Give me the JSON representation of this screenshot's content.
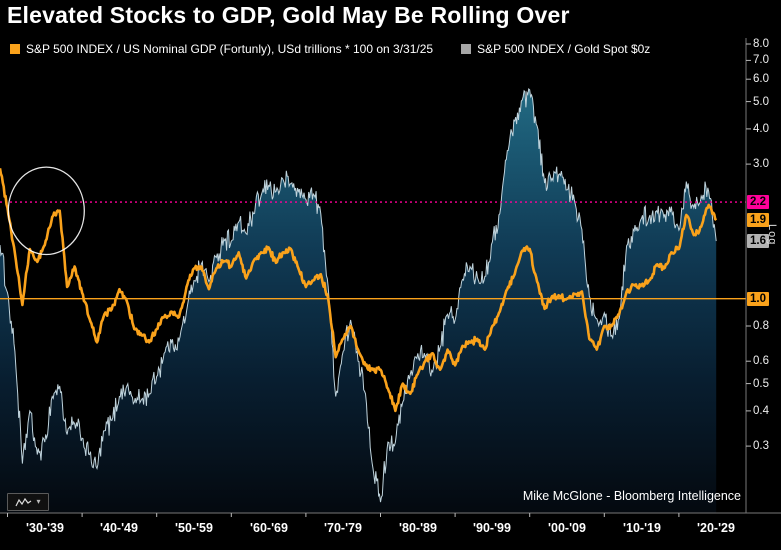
{
  "title": "Elevated Stocks to GDP, Gold May Be Rolling Over",
  "legend": {
    "items": [
      {
        "label": "S&P 500 INDEX / US Nominal GDP (Fortunly), USd trillions * 100 on 3/31/25",
        "swatch_color": "#FAA21B"
      },
      {
        "label": "S&P 500 INDEX / Gold Spot $0z",
        "swatch_color": "#A6A6A6"
      }
    ]
  },
  "footer": {
    "credit": "Mike McGlone - Bloomberg Intelligence"
  },
  "controls": {
    "chart_type_button": {
      "caret": "▾",
      "icon": "line-chart-icon"
    }
  },
  "chart_data": {
    "type": "combo",
    "subtypes": [
      "area",
      "line"
    ],
    "title": "Elevated Stocks to GDP, Gold May Be Rolling Over",
    "y_scale": "log",
    "x_domain_years": [
      1929,
      2029
    ],
    "y_axis": {
      "scale_label": "Log",
      "ticks": [
        {
          "label": "8.0",
          "value": 8.0
        },
        {
          "label": "7.0",
          "value": 7.0
        },
        {
          "label": "6.0",
          "value": 6.0
        },
        {
          "label": "5.0",
          "value": 5.0
        },
        {
          "label": "4.0",
          "value": 4.0
        },
        {
          "label": "3.0",
          "value": 3.0
        },
        {
          "label": "2.2",
          "value": 2.2,
          "badge_color": "#FF0099"
        },
        {
          "label": "1.9",
          "value": 1.9,
          "badge_color": "#FAA21B"
        },
        {
          "label": "1.6",
          "value": 1.6,
          "badge_color": "#B3B3B3"
        },
        {
          "label": "1.0",
          "value": 1.0,
          "badge_color": "#FAA21B"
        },
        {
          "label": "0.8",
          "value": 0.8
        },
        {
          "label": "0.6",
          "value": 0.6
        },
        {
          "label": "0.5",
          "value": 0.5
        },
        {
          "label": "0.4",
          "value": 0.4
        },
        {
          "label": "0.3",
          "value": 0.3
        }
      ]
    },
    "x_axis": {
      "labels": [
        {
          "label": "'30-'39",
          "center_year": 1935
        },
        {
          "label": "'40-'49",
          "center_year": 1945
        },
        {
          "label": "'50-'59",
          "center_year": 1955
        },
        {
          "label": "'60-'69",
          "center_year": 1965
        },
        {
          "label": "'70-'79",
          "center_year": 1975
        },
        {
          "label": "'80-'89",
          "center_year": 1985
        },
        {
          "label": "'90-'99",
          "center_year": 1995
        },
        {
          "label": "'00-'09",
          "center_year": 2005
        },
        {
          "label": "'10-'19",
          "center_year": 2015
        },
        {
          "label": "'20-'29",
          "center_year": 2025
        }
      ]
    },
    "reference_lines": [
      {
        "value": 2.2,
        "style": "dotted",
        "color": "#FF0099",
        "label": "2.2"
      },
      {
        "value": 1.0,
        "style": "solid",
        "color": "#FAA21B",
        "label": "1.0"
      }
    ],
    "current_values": {
      "sp500_div_gdp": 1.9,
      "sp500_div_gold": 1.6
    },
    "series": [
      {
        "name": "S&P 500 INDEX / US Nominal GDP (Fortunly), USd trillions * 100 on 3/31/25",
        "short_name": "sp500_div_gdp",
        "style": "line",
        "color": "#FAA21B",
        "start_year": 1929,
        "step_years": 1,
        "values": [
          2.9,
          2.1,
          1.45,
          0.95,
          1.5,
          1.35,
          1.55,
          1.95,
          2.05,
          1.1,
          1.3,
          1.05,
          0.85,
          0.7,
          0.88,
          0.92,
          1.08,
          0.98,
          0.78,
          0.74,
          0.7,
          0.78,
          0.86,
          0.9,
          0.86,
          1.1,
          1.28,
          1.3,
          1.08,
          1.28,
          1.36,
          1.3,
          1.46,
          1.18,
          1.36,
          1.46,
          1.52,
          1.34,
          1.46,
          1.5,
          1.28,
          1.1,
          1.16,
          1.22,
          1.0,
          0.62,
          0.72,
          0.8,
          0.66,
          0.58,
          0.56,
          0.56,
          0.48,
          0.4,
          0.5,
          0.46,
          0.54,
          0.6,
          0.64,
          0.56,
          0.66,
          0.58,
          0.68,
          0.7,
          0.72,
          0.66,
          0.8,
          0.9,
          1.08,
          1.22,
          1.48,
          1.5,
          1.15,
          0.92,
          1.02,
          1.02,
          1.0,
          1.04,
          1.06,
          0.72,
          0.66,
          0.8,
          0.8,
          0.88,
          1.06,
          1.12,
          1.12,
          1.16,
          1.32,
          1.28,
          1.46,
          1.5,
          1.98,
          1.68,
          1.8,
          2.15,
          1.9
        ]
      },
      {
        "name": "S&P 500 INDEX / Gold Spot $0z",
        "short_name": "sp500_div_gold",
        "style": "area",
        "line_color": "#BFD3DC",
        "fill_gradient": [
          "#2B7A90",
          "#1B5A74",
          "#103A54",
          "#081E30",
          "#04090F"
        ],
        "start_year": 1929,
        "step_years": 1,
        "values": [
          1.55,
          1.05,
          0.65,
          0.26,
          0.4,
          0.28,
          0.31,
          0.45,
          0.49,
          0.33,
          0.36,
          0.32,
          0.28,
          0.25,
          0.34,
          0.37,
          0.45,
          0.49,
          0.43,
          0.44,
          0.46,
          0.53,
          0.64,
          0.7,
          0.71,
          0.9,
          1.16,
          1.33,
          1.15,
          1.4,
          1.63,
          1.6,
          1.87,
          1.7,
          2.0,
          2.32,
          2.52,
          2.4,
          2.62,
          2.56,
          2.4,
          2.25,
          2.35,
          2.0,
          1.1,
          0.45,
          0.65,
          0.84,
          0.6,
          0.46,
          0.25,
          0.19,
          0.31,
          0.31,
          0.43,
          0.54,
          0.64,
          0.62,
          0.55,
          0.67,
          0.88,
          0.84,
          1.17,
          1.3,
          1.19,
          1.2,
          1.59,
          2.0,
          3.35,
          4.27,
          5.06,
          5.5,
          4.1,
          2.57,
          2.67,
          2.77,
          2.43,
          2.23,
          1.76,
          1.02,
          0.85,
          0.89,
          0.74,
          0.85,
          1.54,
          1.74,
          1.93,
          1.94,
          2.05,
          1.95,
          2.12,
          1.75,
          2.6,
          2.1,
          2.31,
          2.4,
          1.6
        ]
      }
    ],
    "annotation": {
      "type": "circle-highlight",
      "center_year": 1935.2,
      "center_value": 2.05,
      "rx_years": 5.1,
      "ry_log_decades": 0.155,
      "color": "#FFFFFF"
    }
  }
}
